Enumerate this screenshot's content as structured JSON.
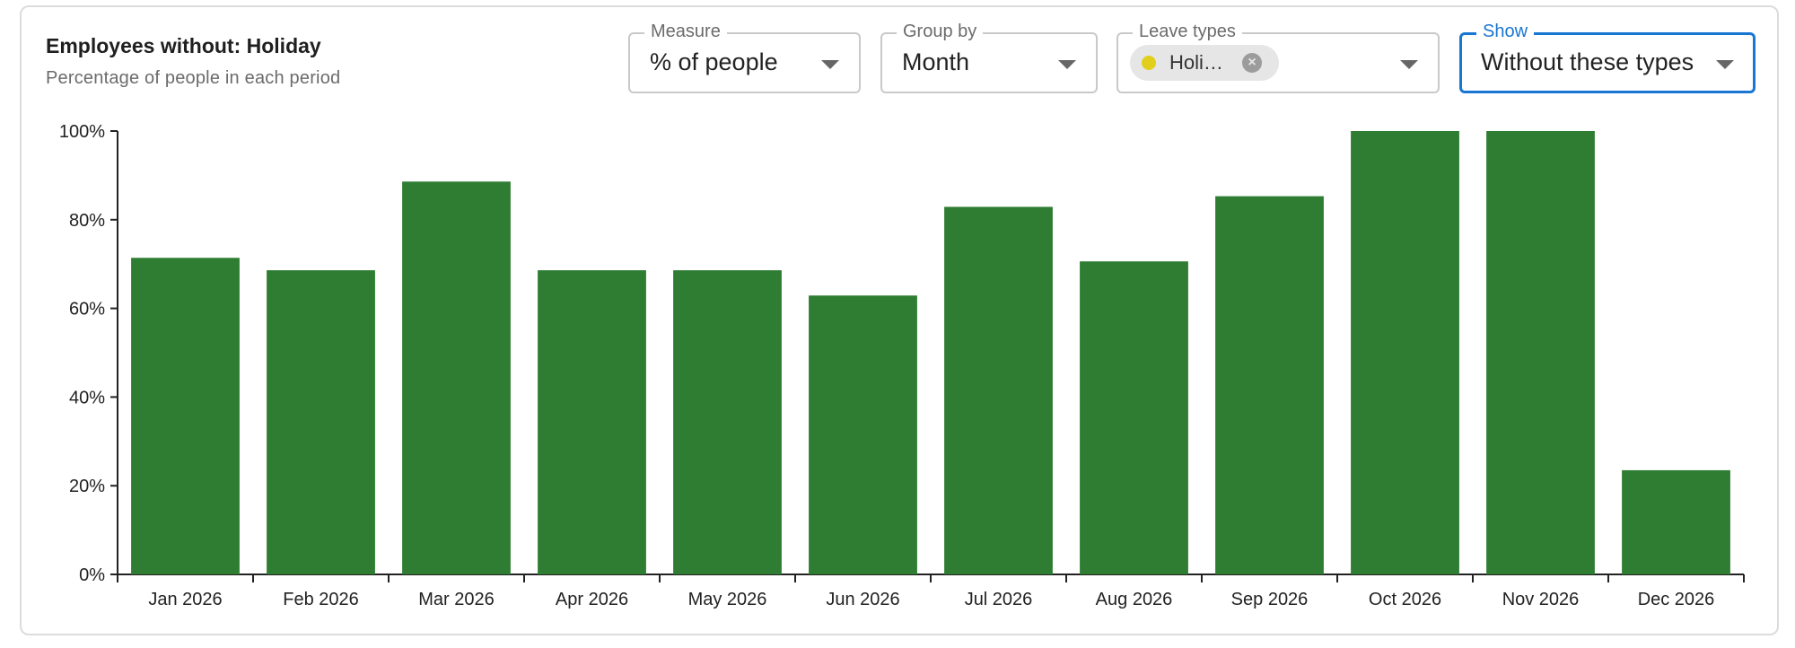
{
  "header": {
    "title": "Employees without: Holiday",
    "subtitle": "Percentage of people in each period"
  },
  "controls": {
    "measure": {
      "label": "Measure",
      "value": "% of people"
    },
    "group_by": {
      "label": "Group by",
      "value": "Month"
    },
    "leave_types": {
      "label": "Leave types",
      "chip_label": "Holi…",
      "chip_color": "#e2cf1d"
    },
    "show": {
      "label": "Show",
      "value": "Without these types"
    }
  },
  "colors": {
    "bar": "#2e7d32",
    "axis": "#222222",
    "focus": "#1976d2"
  },
  "chart_data": {
    "type": "bar",
    "title": "Employees without: Holiday",
    "subtitle": "Percentage of people in each period",
    "xlabel": "",
    "ylabel": "",
    "categories": [
      "Jan 2026",
      "Feb 2026",
      "Mar 2026",
      "Apr 2026",
      "May 2026",
      "Jun 2026",
      "Jul 2026",
      "Aug 2026",
      "Sep 2026",
      "Oct 2026",
      "Nov 2026",
      "Dec 2026"
    ],
    "values": [
      71.4,
      68.6,
      88.6,
      68.6,
      68.6,
      62.9,
      82.9,
      70.6,
      85.3,
      100,
      100,
      23.5
    ],
    "ylim": [
      0,
      100
    ],
    "yticks": [
      0,
      20,
      40,
      60,
      80,
      100
    ],
    "ytick_labels": [
      "0%",
      "20%",
      "40%",
      "60%",
      "80%",
      "100%"
    ],
    "grid": false,
    "legend": "none"
  }
}
